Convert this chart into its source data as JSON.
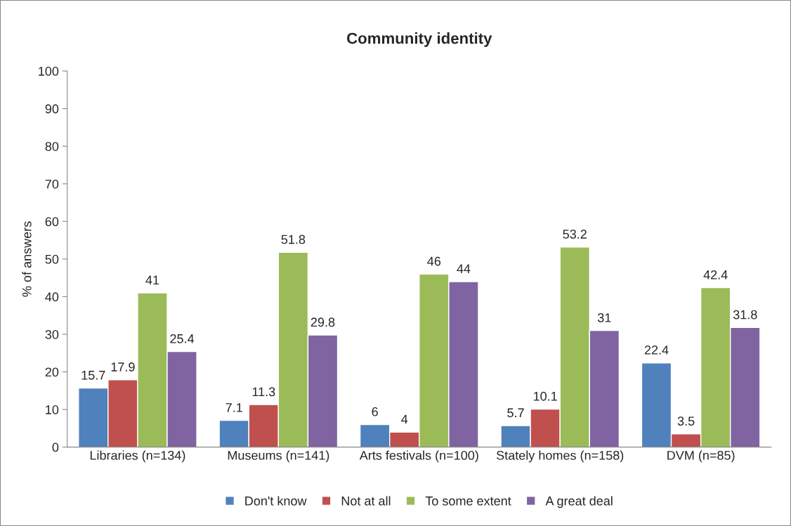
{
  "chart_data": {
    "type": "bar",
    "title": "Community identity",
    "ylabel": "% of answers",
    "categories": [
      "Libraries (n=134)",
      "Museums (n=141)",
      "Arts festivals (n=100)",
      "Stately homes (n=158)",
      "DVM (n=85)"
    ],
    "series": [
      {
        "name": "Don't know",
        "color": "#4f81bd",
        "values": [
          15.7,
          7.1,
          6,
          5.7,
          22.4
        ]
      },
      {
        "name": "Not at all",
        "color": "#c0504d",
        "values": [
          17.9,
          11.3,
          4,
          10.1,
          3.5
        ]
      },
      {
        "name": "To some extent",
        "color": "#9bbb59",
        "values": [
          41,
          51.8,
          46,
          53.2,
          42.4
        ]
      },
      {
        "name": "A great deal",
        "color": "#8064a2",
        "values": [
          25.4,
          29.8,
          44,
          31,
          31.8
        ]
      }
    ],
    "ylim": [
      0,
      100
    ],
    "yticks": [
      0,
      10,
      20,
      30,
      40,
      50,
      60,
      70,
      80,
      90,
      100
    ],
    "data_labels": true,
    "legend": "bottom",
    "grid": false
  }
}
